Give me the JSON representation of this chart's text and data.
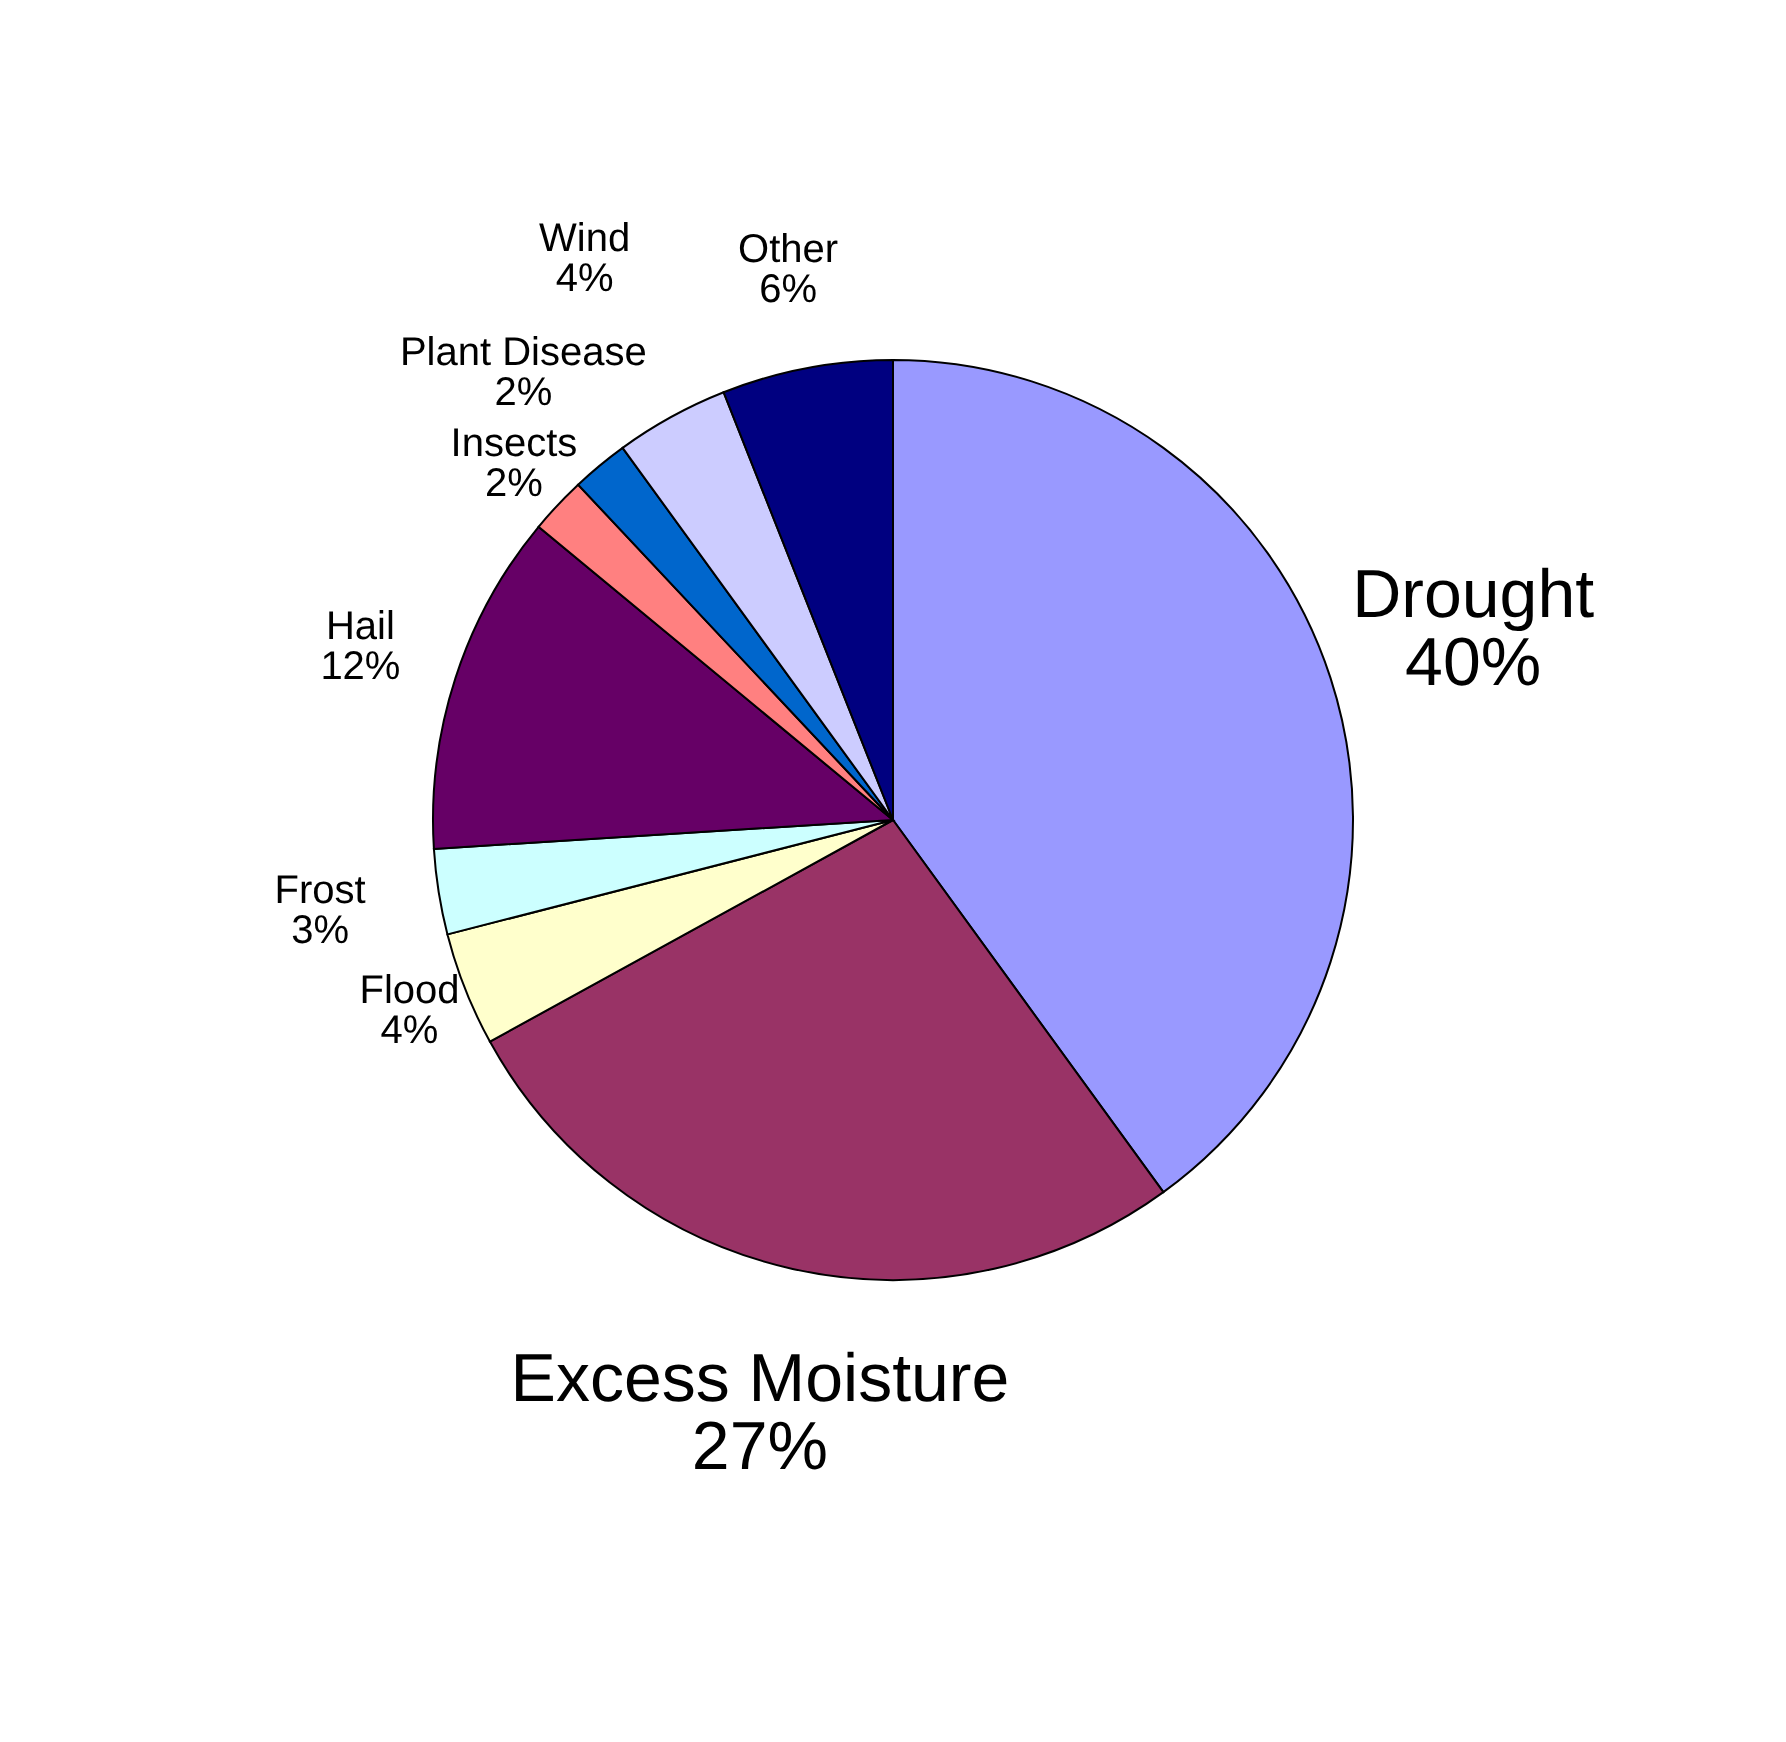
{
  "chart_data": {
    "type": "pie",
    "categories": [
      "Drought",
      "Excess Moisture",
      "Flood",
      "Frost",
      "Hail",
      "Insects",
      "Plant Disease",
      "Wind",
      "Other"
    ],
    "values": [
      40,
      27,
      4,
      3,
      12,
      2,
      2,
      4,
      6
    ],
    "colors": [
      "#9999ff",
      "#993366",
      "#ffffcc",
      "#ccffff",
      "#660066",
      "#ff8080",
      "#0066cc",
      "#ccccff",
      "#000080"
    ],
    "value_labels": [
      "40%",
      "27%",
      "4%",
      "3%",
      "12%",
      "2%",
      "2%",
      "4%",
      "6%"
    ]
  }
}
